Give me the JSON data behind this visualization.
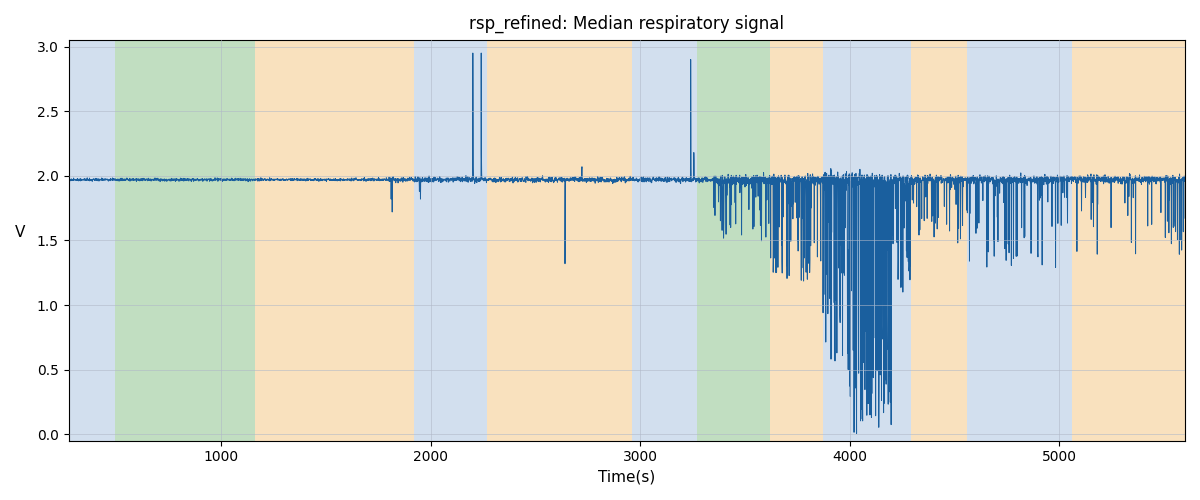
{
  "title": "rsp_refined: Median respiratory signal",
  "xlabel": "Time(s)",
  "ylabel": "V",
  "xlim": [
    270,
    5600
  ],
  "ylim": [
    -0.05,
    3.05
  ],
  "yticks": [
    0.0,
    0.5,
    1.0,
    1.5,
    2.0,
    2.5,
    3.0
  ],
  "xticks": [
    1000,
    2000,
    3000,
    4000,
    5000
  ],
  "signal_color": "#1a5f9e",
  "background_bands": [
    {
      "xstart": 270,
      "xend": 490,
      "color": "#aec6e0",
      "alpha": 0.55
    },
    {
      "xstart": 490,
      "xend": 1160,
      "color": "#8ec48e",
      "alpha": 0.55
    },
    {
      "xstart": 1160,
      "xend": 1920,
      "color": "#f5c98a",
      "alpha": 0.55
    },
    {
      "xstart": 1920,
      "xend": 2270,
      "color": "#aec6e0",
      "alpha": 0.55
    },
    {
      "xstart": 2270,
      "xend": 2960,
      "color": "#f5c98a",
      "alpha": 0.55
    },
    {
      "xstart": 2960,
      "xend": 3270,
      "color": "#aec6e0",
      "alpha": 0.55
    },
    {
      "xstart": 3270,
      "xend": 3620,
      "color": "#8ec48e",
      "alpha": 0.55
    },
    {
      "xstart": 3620,
      "xend": 3870,
      "color": "#f5c98a",
      "alpha": 0.55
    },
    {
      "xstart": 3870,
      "xend": 4290,
      "color": "#aec6e0",
      "alpha": 0.55
    },
    {
      "xstart": 4290,
      "xend": 4560,
      "color": "#f5c98a",
      "alpha": 0.55
    },
    {
      "xstart": 4560,
      "xend": 5060,
      "color": "#aec6e0",
      "alpha": 0.55
    },
    {
      "xstart": 5060,
      "xend": 5600,
      "color": "#f5c98a",
      "alpha": 0.55
    }
  ],
  "grid_color": "#b0b8c8",
  "grid_alpha": 0.8,
  "bg_color": "white",
  "linewidth": 0.7,
  "base_value": 1.97,
  "seed": 0
}
